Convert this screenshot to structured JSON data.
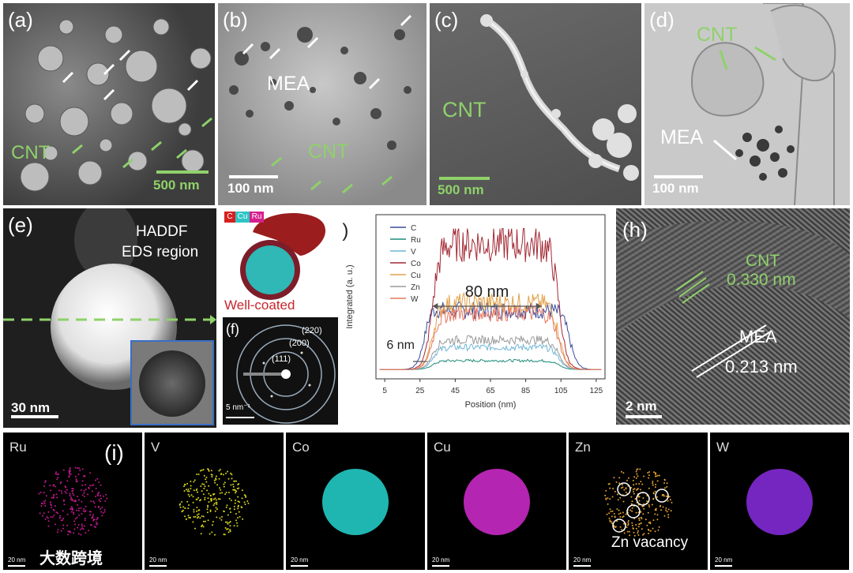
{
  "panels": {
    "a": {
      "label": "(a)",
      "cnt": "CNT",
      "scale": "500 nm"
    },
    "b": {
      "label": "(b)",
      "mea": "MEA",
      "cnt": "CNT",
      "scale": "100 nm"
    },
    "c": {
      "label": "(c)",
      "cnt": "CNT",
      "scale": "500 nm"
    },
    "d": {
      "label": "(d)",
      "cnt": "CNT",
      "mea": "MEA",
      "scale": "100 nm"
    },
    "e": {
      "label": "(e)",
      "haddf": "HADDF",
      "eds_region": "EDS region",
      "scale": "30 nm"
    },
    "eds_map": {
      "legend_c": "C",
      "legend_cu": "Cu",
      "legend_ru": "Ru",
      "caption": "Well-coated"
    },
    "f": {
      "label": "(f)",
      "ring_220": "(220)",
      "ring_200": "(200)",
      "ring_111": "(111)",
      "scale": "5 nm⁻¹"
    },
    "h": {
      "label": "(h)",
      "cnt": "CNT",
      "cnt_spacing": "0.330 nm",
      "mea": "MEA",
      "mea_spacing": "0.213 nm",
      "scale": "2 nm"
    },
    "i": {
      "label": "(i)",
      "zn_vacancy": "Zn vacancy",
      "scale": "20 nm"
    }
  },
  "maps": [
    {
      "element": "Ru",
      "color": "#c2188f"
    },
    {
      "element": "V",
      "color": "#d6d21c"
    },
    {
      "element": "Co",
      "color": "#25d6d0"
    },
    {
      "element": "Cu",
      "color": "#d42bd0"
    },
    {
      "element": "Zn",
      "color": "#e0a030"
    },
    {
      "element": "W",
      "color": "#8a2be2"
    }
  ],
  "watermark": "大数跨境",
  "colors": {
    "cnt_green": "#8fd16a",
    "coated_red": "#c8262c"
  },
  "chart_data": {
    "type": "line",
    "label": "(g)",
    "xlabel": "Position (nm)",
    "ylabel": "Integrated (a. u.)",
    "xlim": [
      0,
      130
    ],
    "x_ticks": [
      5,
      25,
      45,
      65,
      85,
      105,
      125
    ],
    "annotations": [
      "80 nm",
      "6 nm"
    ],
    "series": [
      {
        "name": "C",
        "color": "#3b4c9b",
        "plateau": 0.4
      },
      {
        "name": "Ru",
        "color": "#1f8c7a",
        "plateau": 0.06
      },
      {
        "name": "V",
        "color": "#6fb5d6",
        "plateau": 0.15
      },
      {
        "name": "Co",
        "color": "#a32a35",
        "plateau": 0.85
      },
      {
        "name": "Cu",
        "color": "#e2a24a",
        "plateau": 0.45
      },
      {
        "name": "Zn",
        "color": "#9a9a9a",
        "plateau": 0.2
      },
      {
        "name": "W",
        "color": "#e87860",
        "plateau": 0.38
      }
    ]
  }
}
